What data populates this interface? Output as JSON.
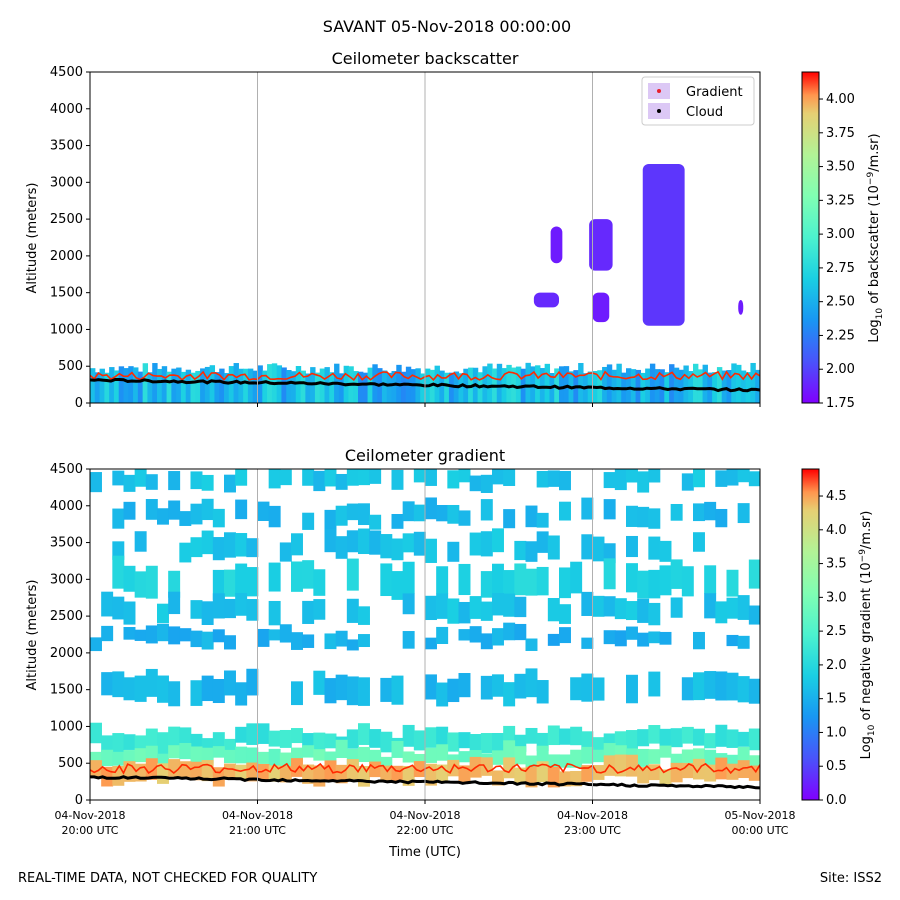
{
  "figure": {
    "suptitle": "SAVANT 05-Nov-2018 00:00:00",
    "footer_left": "REAL-TIME DATA, NOT CHECKED FOR QUALITY",
    "footer_right": "Site: ISS2"
  },
  "chart_data": [
    {
      "type": "heatmap",
      "title": "Ceilometer backscatter",
      "ylabel": "Altitude (meters)",
      "ylim": [
        0,
        4500
      ],
      "yticks": [
        0,
        500,
        1000,
        1500,
        2000,
        2500,
        3000,
        3500,
        4000,
        4500
      ],
      "xlim_hours": [
        20,
        24
      ],
      "grid": "vertical",
      "legend": {
        "placement": "top-right",
        "entries": [
          "Gradient",
          "Cloud"
        ],
        "colors": [
          "#e8202c",
          "#000000"
        ]
      },
      "colorbar": {
        "label_prefix": "Log",
        "label_sub": "10",
        "label_mid": " of backscatter (10",
        "label_sup": "−9",
        "label_suffix": "/m.sr)",
        "range": [
          1.75,
          4.2
        ],
        "ticks": [
          1.75,
          2.0,
          2.25,
          2.5,
          2.75,
          3.0,
          3.25,
          3.5,
          3.75,
          4.0
        ],
        "tick_labels": [
          "1.75",
          "2.00",
          "2.25",
          "2.50",
          "2.75",
          "3.00",
          "3.25",
          "3.50",
          "3.75",
          "4.00"
        ],
        "colormap": "rainbow"
      },
      "regions": [
        {
          "t_start": 22.65,
          "t_end": 22.8,
          "alt_low": 1300,
          "alt_high": 1500,
          "level": 1.9
        },
        {
          "t_start": 22.75,
          "t_end": 22.82,
          "alt_low": 1900,
          "alt_high": 2400,
          "level": 1.85
        },
        {
          "t_start": 22.98,
          "t_end": 23.12,
          "alt_low": 1800,
          "alt_high": 2500,
          "level": 1.9
        },
        {
          "t_start": 23.0,
          "t_end": 23.1,
          "alt_low": 1100,
          "alt_high": 1500,
          "level": 1.85
        },
        {
          "t_start": 23.3,
          "t_end": 23.55,
          "alt_low": 1050,
          "alt_high": 3250,
          "level": 1.95
        },
        {
          "t_start": 23.87,
          "t_end": 23.9,
          "alt_low": 1200,
          "alt_high": 1400,
          "level": 1.85
        }
      ],
      "aerosol_top_m": 500,
      "gradient_m": 370,
      "cloud_base_m": 250
    },
    {
      "type": "heatmap",
      "title": "Ceilometer gradient",
      "ylabel": "Altitude (meters)",
      "xlabel": "Time (UTC)",
      "ylim": [
        0,
        4500
      ],
      "yticks": [
        0,
        500,
        1000,
        1500,
        2000,
        2500,
        3000,
        3500,
        4000,
        4500
      ],
      "xlim_hours": [
        20,
        24
      ],
      "xticks_hours": [
        20,
        21,
        22,
        23,
        24
      ],
      "xtick_labels": [
        [
          "04-Nov-2018",
          "20:00 UTC"
        ],
        [
          "04-Nov-2018",
          "21:00 UTC"
        ],
        [
          "04-Nov-2018",
          "22:00 UTC"
        ],
        [
          "04-Nov-2018",
          "23:00 UTC"
        ],
        [
          "05-Nov-2018",
          "00:00 UTC"
        ]
      ],
      "grid": "vertical",
      "colorbar": {
        "label_prefix": "Log",
        "label_sub": "10",
        "label_mid": " of negative gradient (10",
        "label_sup": "−9",
        "label_suffix": "/m.sr)",
        "range": [
          0,
          4.9
        ],
        "ticks": [
          0,
          0.5,
          1.0,
          1.5,
          2.0,
          2.5,
          3.0,
          3.5,
          4.0,
          4.5
        ],
        "tick_labels": [
          "0.0",
          "0.5",
          "1.0",
          "1.5",
          "2.0",
          "2.5",
          "3.0",
          "3.5",
          "4.0",
          "4.5"
        ],
        "colormap": "rainbow"
      },
      "bands": [
        {
          "alt_low": 4250,
          "alt_high": 4500,
          "level": 1.7
        },
        {
          "alt_low": 3750,
          "alt_high": 4000,
          "level": 1.6
        },
        {
          "alt_low": 3300,
          "alt_high": 3600,
          "level": 1.7
        },
        {
          "alt_low": 2800,
          "alt_high": 3200,
          "level": 1.9
        },
        {
          "alt_low": 2450,
          "alt_high": 2750,
          "level": 1.7
        },
        {
          "alt_low": 2100,
          "alt_high": 2300,
          "level": 1.5
        },
        {
          "alt_low": 1350,
          "alt_high": 1700,
          "level": 1.6
        },
        {
          "alt_low": 700,
          "alt_high": 950,
          "level": 2.2
        },
        {
          "alt_low": 500,
          "alt_high": 700,
          "level": 2.8
        },
        {
          "alt_low": 250,
          "alt_high": 500,
          "level": 4.4
        }
      ],
      "cloud_base_m": 250,
      "cloud_top_m": 430
    }
  ]
}
